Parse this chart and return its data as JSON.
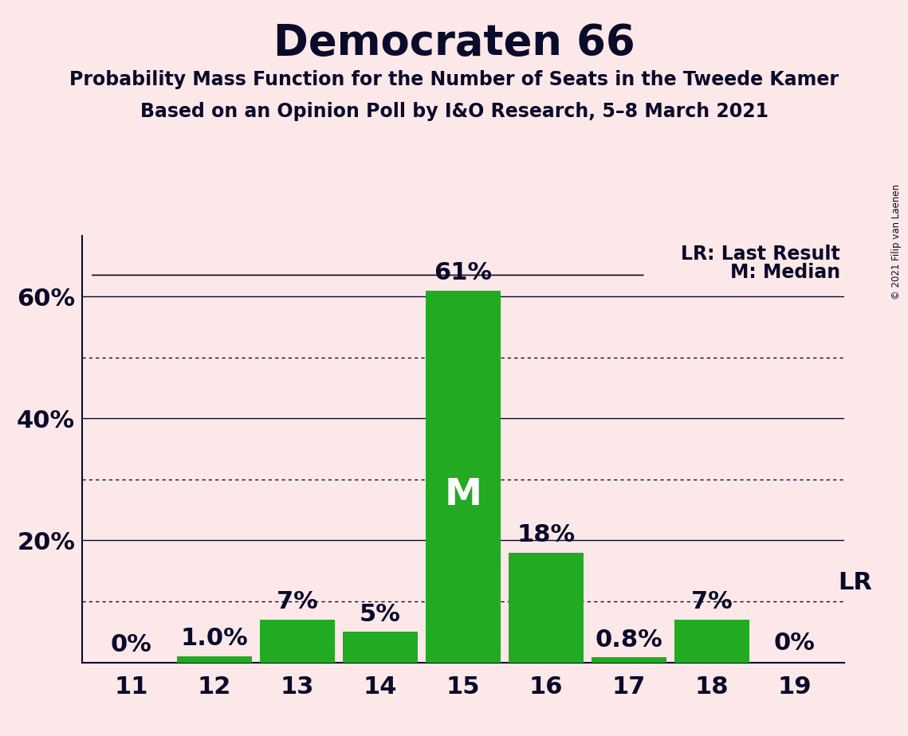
{
  "title": "Democraten 66",
  "subtitle1": "Probability Mass Function for the Number of Seats in the Tweede Kamer",
  "subtitle2": "Based on an Opinion Poll by I&O Research, 5–8 March 2021",
  "copyright": "© 2021 Filip van Laenen",
  "seats": [
    11,
    12,
    13,
    14,
    15,
    16,
    17,
    18,
    19
  ],
  "values": [
    0.0,
    1.0,
    7.0,
    5.0,
    61.0,
    18.0,
    0.8,
    7.0,
    0.0
  ],
  "bar_color": "#22aa22",
  "background_color": "#fce8e8",
  "text_color": "#0a0a2a",
  "median_seat": 15,
  "last_result_seat": 19,
  "ylim_max": 70,
  "ytick_vals": [
    20,
    40,
    60
  ],
  "ytick_labels": [
    "20%",
    "40%",
    "60%"
  ],
  "dotted_gridlines": [
    10,
    30,
    50
  ],
  "solid_gridlines": [
    20,
    40,
    60
  ],
  "bar_labels": [
    "0%",
    "1.0%",
    "7%",
    "5%",
    "61%",
    "18%",
    "0.8%",
    "7%",
    "0%"
  ],
  "legend_lr_text": "LR: Last Result",
  "legend_m_text": "M: Median"
}
